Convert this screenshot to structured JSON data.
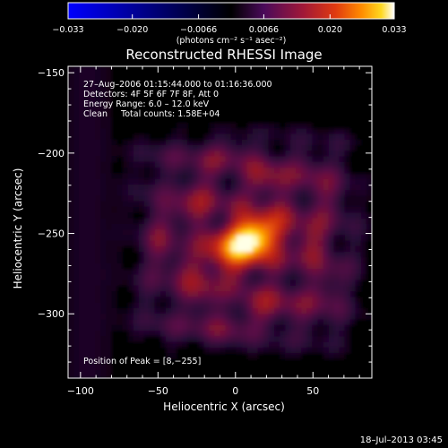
{
  "chart_data": {
    "type": "heatmap",
    "title": "Reconstructed RHESSI Image",
    "xlabel": "Heliocentric X (arcsec)",
    "ylabel": "Heliocentric Y (arcsec)",
    "xlim": [
      -108,
      88
    ],
    "ylim": [
      -340,
      -146
    ],
    "xticks": [
      -100,
      -50,
      0,
      50
    ],
    "xtick_labels": [
      "−100",
      "−50",
      "0",
      "50"
    ],
    "yticks": [
      -150,
      -200,
      -250,
      -300
    ],
    "ytick_labels": [
      "−150",
      "−200",
      "−250",
      "−300"
    ],
    "grid": false,
    "annotations": [
      "27–Aug–2006 01:15:44.000 to 01:16:36.000",
      "Detectors: 4F 5F 6F 7F 8F, Att 0",
      "Energy Range: 6.0 – 12.0 keV",
      "Clean     Total counts: 1.58E+04"
    ],
    "peak_label": "Position of Peak = [8,−255]",
    "peak": {
      "x": 8,
      "y": -255,
      "value": 0.033
    },
    "colorbar": {
      "range": [
        -0.033,
        0.033
      ],
      "ticks": [
        -0.033,
        -0.02,
        -0.0066,
        0.0066,
        0.02,
        0.033
      ],
      "tick_labels": [
        "−0.033",
        "−0.020",
        "−0.0066",
        "0.0066",
        "0.020",
        "0.033"
      ],
      "units_label": "(photons cm⁻² s⁻¹ asec⁻²)"
    },
    "colors": {
      "background": "#000000",
      "cmap_negative": [
        "#0000ff",
        "#000000"
      ],
      "cmap_positive": [
        "#000000",
        "#4a0a5a",
        "#a01838",
        "#e03a10",
        "#ff8c00",
        "#ffd820",
        "#ffffff"
      ]
    }
  },
  "footer": {
    "timestamp": "18–Jul–2013 03:45"
  }
}
